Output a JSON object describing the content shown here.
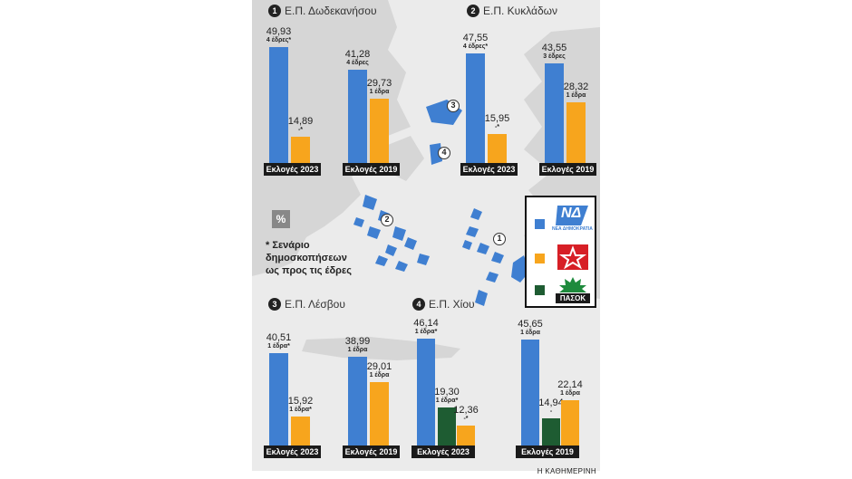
{
  "colors": {
    "nd": "#3f7fd1",
    "syriza": "#f7a51d",
    "pasok": "#1e5c32",
    "map_bg": "#ebebeb",
    "land": "#d6d6d6",
    "islands": "#3f7fd1",
    "label_bg": "#1a1a1a"
  },
  "source": "Η ΚΑΘΗΜΕΡΙΝΗ",
  "note": {
    "symbol": "%",
    "text_lines": [
      "* Σενάριο",
      "δημοσκοπήσεων",
      "ως προς τις έδρες"
    ]
  },
  "legend": {
    "items": [
      {
        "party": "ΝΔ",
        "logo_text": "ΝΔ",
        "sub_text": "ΝΕΑ ΔΗΜΟΚΡΑΤΙΑ",
        "color_key": "nd"
      },
      {
        "party": "ΣΥΡΙΖΑ",
        "logo_text": "",
        "color_key": "syriza"
      },
      {
        "party": "ΠΑΣΟΚ",
        "logo_text": "ΠΑΣΟΚ",
        "color_key": "pasok"
      }
    ]
  },
  "map_markers": [
    "1",
    "2",
    "3",
    "4"
  ],
  "chart_data": [
    {
      "type": "bar",
      "number": "1",
      "title": "Ε.Π. Δωδεκανήσου",
      "ylim": [
        0,
        55
      ],
      "groups": [
        {
          "label": "Εκλογές 2023",
          "bars": [
            {
              "party": "nd",
              "value": 49.93,
              "value_label": "49,93",
              "seats": "4 έδρες*"
            },
            {
              "party": "syriza",
              "value": 14.89,
              "value_label": "14,89",
              "seats": "-*"
            }
          ]
        },
        {
          "label": "Εκλογές 2019",
          "bars": [
            {
              "party": "nd",
              "value": 41.28,
              "value_label": "41,28",
              "seats": "4 έδρες"
            },
            {
              "party": "syriza",
              "value": 29.73,
              "value_label": "29,73",
              "seats": "1 έδρα"
            }
          ]
        }
      ]
    },
    {
      "type": "bar",
      "number": "2",
      "title": "Ε.Π. Κυκλάδων",
      "ylim": [
        0,
        55
      ],
      "groups": [
        {
          "label": "Εκλογές 2023",
          "bars": [
            {
              "party": "nd",
              "value": 47.55,
              "value_label": "47,55",
              "seats": "4 έδρες*"
            },
            {
              "party": "syriza",
              "value": 15.95,
              "value_label": "15,95",
              "seats": "-*"
            }
          ]
        },
        {
          "label": "Εκλογές 2019",
          "bars": [
            {
              "party": "nd",
              "value": 43.55,
              "value_label": "43,55",
              "seats": "3 έδρες"
            },
            {
              "party": "syriza",
              "value": 28.32,
              "value_label": "28,32",
              "seats": "1 έδρα"
            }
          ]
        }
      ]
    },
    {
      "type": "bar",
      "number": "3",
      "title": "Ε.Π. Λέσβου",
      "ylim": [
        0,
        55
      ],
      "groups": [
        {
          "label": "Εκλογές 2023",
          "bars": [
            {
              "party": "nd",
              "value": 40.51,
              "value_label": "40,51",
              "seats": "1 έδρα*"
            },
            {
              "party": "syriza",
              "value": 15.92,
              "value_label": "15,92",
              "seats": "1 έδρα*"
            }
          ]
        },
        {
          "label": "Εκλογές 2019",
          "bars": [
            {
              "party": "nd",
              "value": 38.99,
              "value_label": "38,99",
              "seats": "1 έδρα"
            },
            {
              "party": "syriza",
              "value": 29.01,
              "value_label": "29,01",
              "seats": "1 έδρα"
            }
          ]
        }
      ]
    },
    {
      "type": "bar",
      "number": "4",
      "title": "Ε.Π. Χίου",
      "ylim": [
        0,
        55
      ],
      "groups": [
        {
          "label": "Εκλογές 2023",
          "bars": [
            {
              "party": "nd",
              "value": 46.14,
              "value_label": "46,14",
              "seats": "1 έδρα*"
            },
            {
              "party": "pasok",
              "value": 19.3,
              "value_label": "19,30",
              "seats": "1 έδρα*"
            },
            {
              "party": "syriza",
              "value": 12.36,
              "value_label": "12,36",
              "seats": "-*"
            }
          ]
        },
        {
          "label": "Εκλογές 2019",
          "bars": [
            {
              "party": "nd",
              "value": 45.65,
              "value_label": "45,65",
              "seats": "1 έδρα"
            },
            {
              "party": "pasok",
              "value": 14.94,
              "value_label": "14,94",
              "seats": "-"
            },
            {
              "party": "syriza",
              "value": 22.14,
              "value_label": "22,14",
              "seats": "1 έδρα"
            }
          ]
        }
      ]
    }
  ]
}
